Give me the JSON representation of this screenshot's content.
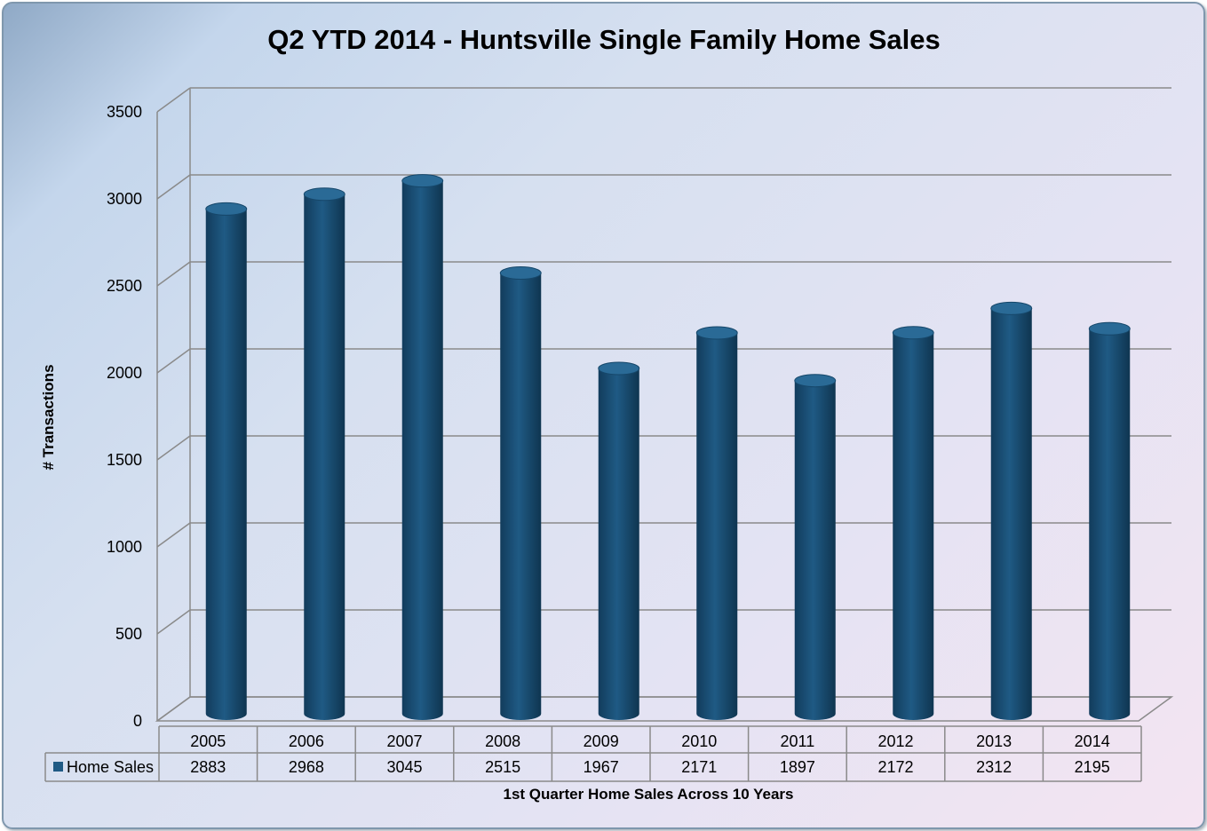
{
  "chart_data": {
    "type": "bar",
    "title": "Q2 YTD 2014 - Huntsville Single Family Home Sales",
    "ylabel": "# Transactions",
    "xlabel": "1st Quarter Home Sales Across 10 Years",
    "categories": [
      "2005",
      "2006",
      "2007",
      "2008",
      "2009",
      "2010",
      "2011",
      "2012",
      "2013",
      "2014"
    ],
    "series": [
      {
        "name": "Home Sales",
        "values": [
          2883,
          2968,
          3045,
          2515,
          1967,
          2171,
          1897,
          2172,
          2312,
          2195
        ],
        "value_labels": [
          "2883",
          "2968",
          "3045",
          "2515",
          "1967",
          "2171",
          "1897",
          "2172",
          "2312",
          "2195"
        ],
        "color": "#1f5a84"
      }
    ],
    "ylim": [
      0,
      3500
    ],
    "y_ticks": [
      0,
      500,
      1000,
      1500,
      2000,
      2500,
      3000,
      3500
    ],
    "y_tick_labels": [
      "0",
      "500",
      "1000",
      "1500",
      "2000",
      "2500",
      "3000",
      "3500"
    ],
    "grid": true,
    "legend": "data-table",
    "shape": "3d-cylinder"
  }
}
